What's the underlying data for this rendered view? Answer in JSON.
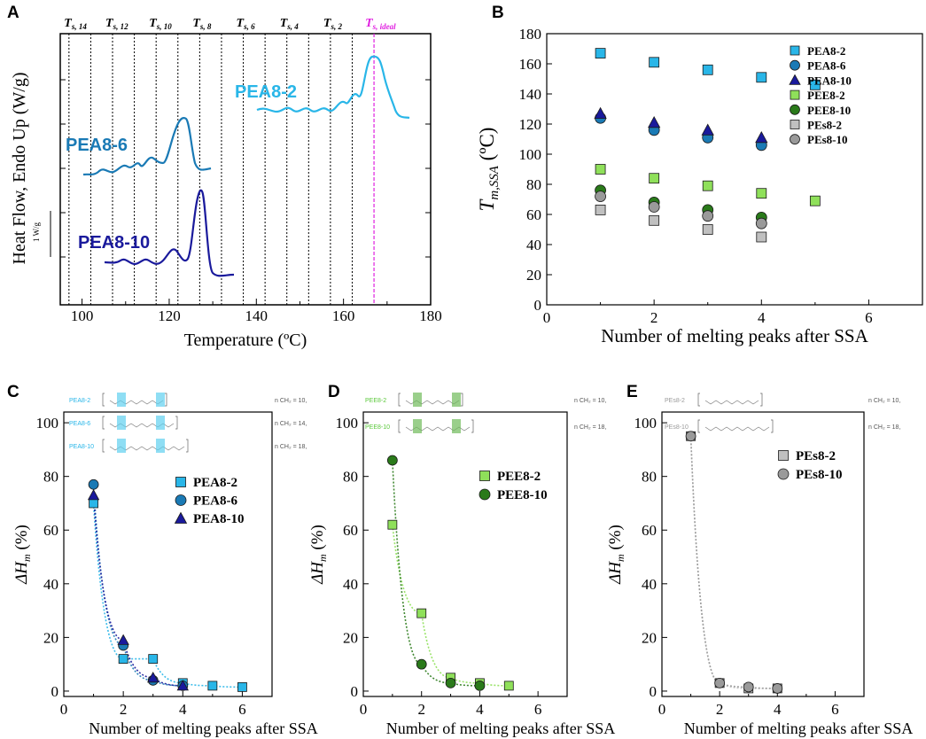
{
  "colors": {
    "pea82": "#29b6e8",
    "pea86": "#1a7ab5",
    "pea810": "#1a1a9c",
    "pee82": "#8fe05a",
    "pee810": "#2a7a1a",
    "pes82": "#c0c0c0",
    "pes810": "#9a9a9a",
    "ideal": "#e020e0"
  },
  "panelA": {
    "label": "A",
    "ylabel": "Heat Flow, Endo Up (W/g)",
    "xlabel": "Temperature (ºC)",
    "scalebar": "1 W/g",
    "xlim": [
      95,
      180
    ],
    "xticks": [
      "100",
      "120",
      "140",
      "160",
      "180"
    ],
    "ts_labels": [
      {
        "T": "T",
        "sub": "s, 14",
        "x": 97.5
      },
      {
        "T": "T",
        "sub": "s, 12",
        "x": 107
      },
      {
        "T": "T",
        "sub": "s, 10",
        "x": 117
      },
      {
        "T": "T",
        "sub": "s, 8",
        "x": 127
      },
      {
        "T": "T",
        "sub": "s, 6",
        "x": 137
      },
      {
        "T": "T",
        "sub": "s, 4",
        "x": 147
      },
      {
        "T": "T",
        "sub": "s, 2",
        "x": 157
      }
    ],
    "ts_ideal": {
      "T": "T",
      "sub": "s, ideal",
      "x": 167
    },
    "dashed_lines": [
      97,
      102,
      107,
      112,
      117,
      122,
      127,
      132,
      137,
      142,
      147,
      152,
      157,
      162
    ],
    "ideal_line": 167,
    "curves": [
      {
        "name": "PEA8-2",
        "label_T": 149
      },
      {
        "name": "PEA8-6",
        "label_T": 104
      },
      {
        "name": "PEA8-10",
        "label_T": 109
      }
    ]
  },
  "chart_data": [
    {
      "panel": "B",
      "type": "scatter",
      "xlabel": "Number of melting peaks after SSA",
      "ylabel_main": "T",
      "ylabel_sub": "m,SSA",
      "ylabel_unit": " (ºC)",
      "xlim": [
        0,
        7
      ],
      "ylim": [
        0,
        180
      ],
      "xticks": [
        "0",
        "2",
        "4",
        "6"
      ],
      "yticks": [
        "0",
        "20",
        "40",
        "60",
        "80",
        "100",
        "120",
        "140",
        "160",
        "180"
      ],
      "series": [
        {
          "name": "PEA8-2",
          "marker": "square",
          "color": "#29b6e8",
          "x": [
            1,
            2,
            3,
            4,
            5
          ],
          "y": [
            167,
            161,
            156,
            151,
            146
          ]
        },
        {
          "name": "PEA8-6",
          "marker": "circle",
          "color": "#1a7ab5",
          "x": [
            1,
            2,
            3,
            4
          ],
          "y": [
            124,
            116,
            111,
            106
          ]
        },
        {
          "name": "PEA8-10",
          "marker": "triangle",
          "color": "#1a1a9c",
          "x": [
            1,
            2,
            3,
            4
          ],
          "y": [
            127,
            121,
            116,
            111
          ]
        },
        {
          "name": "PEE8-2",
          "marker": "square",
          "color": "#8fe05a",
          "x": [
            1,
            2,
            3,
            4,
            5
          ],
          "y": [
            90,
            84,
            79,
            74,
            69
          ]
        },
        {
          "name": "PEE8-10",
          "marker": "circle",
          "color": "#2a7a1a",
          "x": [
            1,
            2,
            3,
            4
          ],
          "y": [
            76,
            68,
            63,
            58
          ]
        },
        {
          "name": "PEs8-2",
          "marker": "square",
          "color": "#c0c0c0",
          "x": [
            1,
            2,
            3,
            4
          ],
          "y": [
            63,
            56,
            50,
            45
          ]
        },
        {
          "name": "PEs8-10",
          "marker": "circle",
          "color": "#9a9a9a",
          "x": [
            1,
            2,
            3,
            4
          ],
          "y": [
            72,
            65,
            59,
            54
          ]
        }
      ]
    },
    {
      "panel": "C",
      "type": "scatter",
      "xlabel": "Number of melting peaks after SSA",
      "ylabel": "ΔH",
      "ylabel_sub": "m",
      "ylabel_unit": " (%)",
      "xlim": [
        0,
        7
      ],
      "ylim": [
        -2,
        104
      ],
      "xticks": [
        "0",
        "2",
        "4",
        "6"
      ],
      "yticks": [
        "0",
        "20",
        "40",
        "60",
        "80",
        "100"
      ],
      "series": [
        {
          "name": "PEA8-2",
          "marker": "square",
          "color": "#29b6e8",
          "x": [
            1,
            2,
            3,
            4,
            5,
            6
          ],
          "y": [
            70,
            12,
            12,
            3,
            2,
            1.5
          ]
        },
        {
          "name": "PEA8-6",
          "marker": "circle",
          "color": "#1a7ab5",
          "x": [
            1,
            2,
            3,
            4
          ],
          "y": [
            77,
            17,
            4,
            2
          ]
        },
        {
          "name": "PEA8-10",
          "marker": "triangle",
          "color": "#1a1a9c",
          "x": [
            1,
            2,
            3,
            4
          ],
          "y": [
            73,
            19,
            5,
            2
          ]
        }
      ],
      "structures": [
        {
          "name": "PEA8-2",
          "nch2": "n CH₂ = 10,"
        },
        {
          "name": "PEA8-6",
          "nch2": "n CH₂ = 14,"
        },
        {
          "name": "PEA8-10",
          "nch2": "n CH₂ = 18,"
        }
      ]
    },
    {
      "panel": "D",
      "type": "scatter",
      "xlabel": "Number of melting peaks after SSA",
      "ylabel": "ΔH",
      "ylabel_sub": "m",
      "ylabel_unit": " (%)",
      "xlim": [
        0,
        7
      ],
      "ylim": [
        -2,
        104
      ],
      "xticks": [
        "0",
        "2",
        "4",
        "6"
      ],
      "yticks": [
        "0",
        "20",
        "40",
        "60",
        "80",
        "100"
      ],
      "series": [
        {
          "name": "PEE8-2",
          "marker": "square",
          "color": "#8fe05a",
          "x": [
            1,
            2,
            3,
            4,
            5
          ],
          "y": [
            62,
            29,
            5,
            3,
            2
          ]
        },
        {
          "name": "PEE8-10",
          "marker": "circle",
          "color": "#2a7a1a",
          "x": [
            1,
            2,
            3,
            4
          ],
          "y": [
            86,
            10,
            3,
            2
          ]
        }
      ],
      "structures": [
        {
          "name": "PEE8-2",
          "nch2": "n CH₂ = 10,"
        },
        {
          "name": "PEE8-10",
          "nch2": "n CH₂ = 18,"
        }
      ]
    },
    {
      "panel": "E",
      "type": "scatter",
      "xlabel": "Number of melting peaks after SSA",
      "ylabel": "ΔH",
      "ylabel_sub": "m",
      "ylabel_unit": " (%)",
      "xlim": [
        0,
        7
      ],
      "ylim": [
        -2,
        104
      ],
      "xticks": [
        "0",
        "2",
        "4",
        "6"
      ],
      "yticks": [
        "0",
        "20",
        "40",
        "60",
        "80",
        "100"
      ],
      "series": [
        {
          "name": "PEs8-2",
          "marker": "square",
          "color": "#c0c0c0",
          "x": [
            1,
            2,
            3,
            4
          ],
          "y": [
            95,
            3,
            1,
            1
          ]
        },
        {
          "name": "PEs8-10",
          "marker": "circle",
          "color": "#9a9a9a",
          "x": [
            1,
            2,
            3,
            4
          ],
          "y": [
            95,
            3,
            1.5,
            1
          ]
        }
      ],
      "structures": [
        {
          "name": "PEs8-2",
          "nch2": "n CH₂ = 10,"
        },
        {
          "name": "PEs8-10",
          "nch2": "n CH₂ = 18,"
        }
      ]
    }
  ]
}
